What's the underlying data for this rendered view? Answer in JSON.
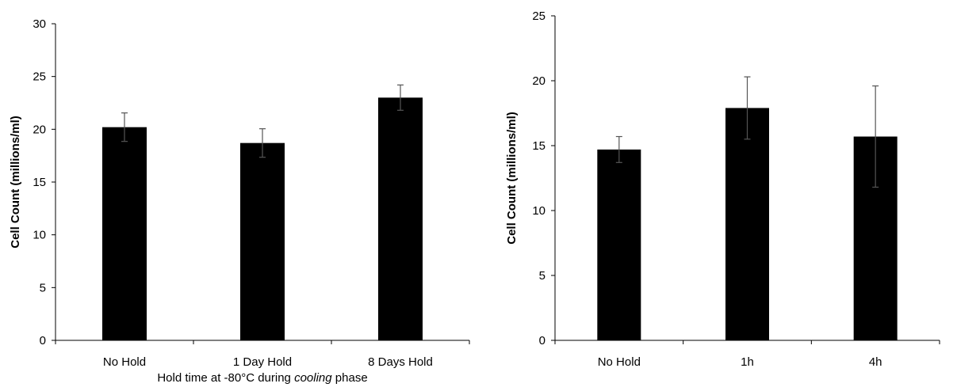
{
  "chart_data": [
    {
      "type": "bar",
      "categories": [
        "No Hold",
        "1 Day Hold",
        "8 Days Hold"
      ],
      "values": [
        20.2,
        18.7,
        23.0
      ],
      "error": [
        1.35,
        1.35,
        1.2
      ],
      "xlabel": {
        "before": "Hold time at -80°C during ",
        "italic": "cooling",
        "after": " phase"
      },
      "ylabel": "Cell Count (millions/ml)",
      "ylim": [
        0,
        30
      ],
      "yticks": [
        0,
        5,
        10,
        15,
        20,
        25,
        30
      ],
      "bar_color": "#000000",
      "grid": false
    },
    {
      "type": "bar",
      "categories": [
        "No Hold",
        "1h",
        "4h"
      ],
      "values": [
        14.7,
        17.9,
        15.7
      ],
      "error": [
        1.0,
        2.4,
        3.9
      ],
      "xlabel": {
        "before": "",
        "italic": "",
        "after": ""
      },
      "ylabel": "Cell Count (millions/ml)",
      "ylim": [
        0,
        25
      ],
      "yticks": [
        0,
        5,
        10,
        15,
        20,
        25
      ],
      "bar_color": "#000000",
      "grid": false
    }
  ]
}
